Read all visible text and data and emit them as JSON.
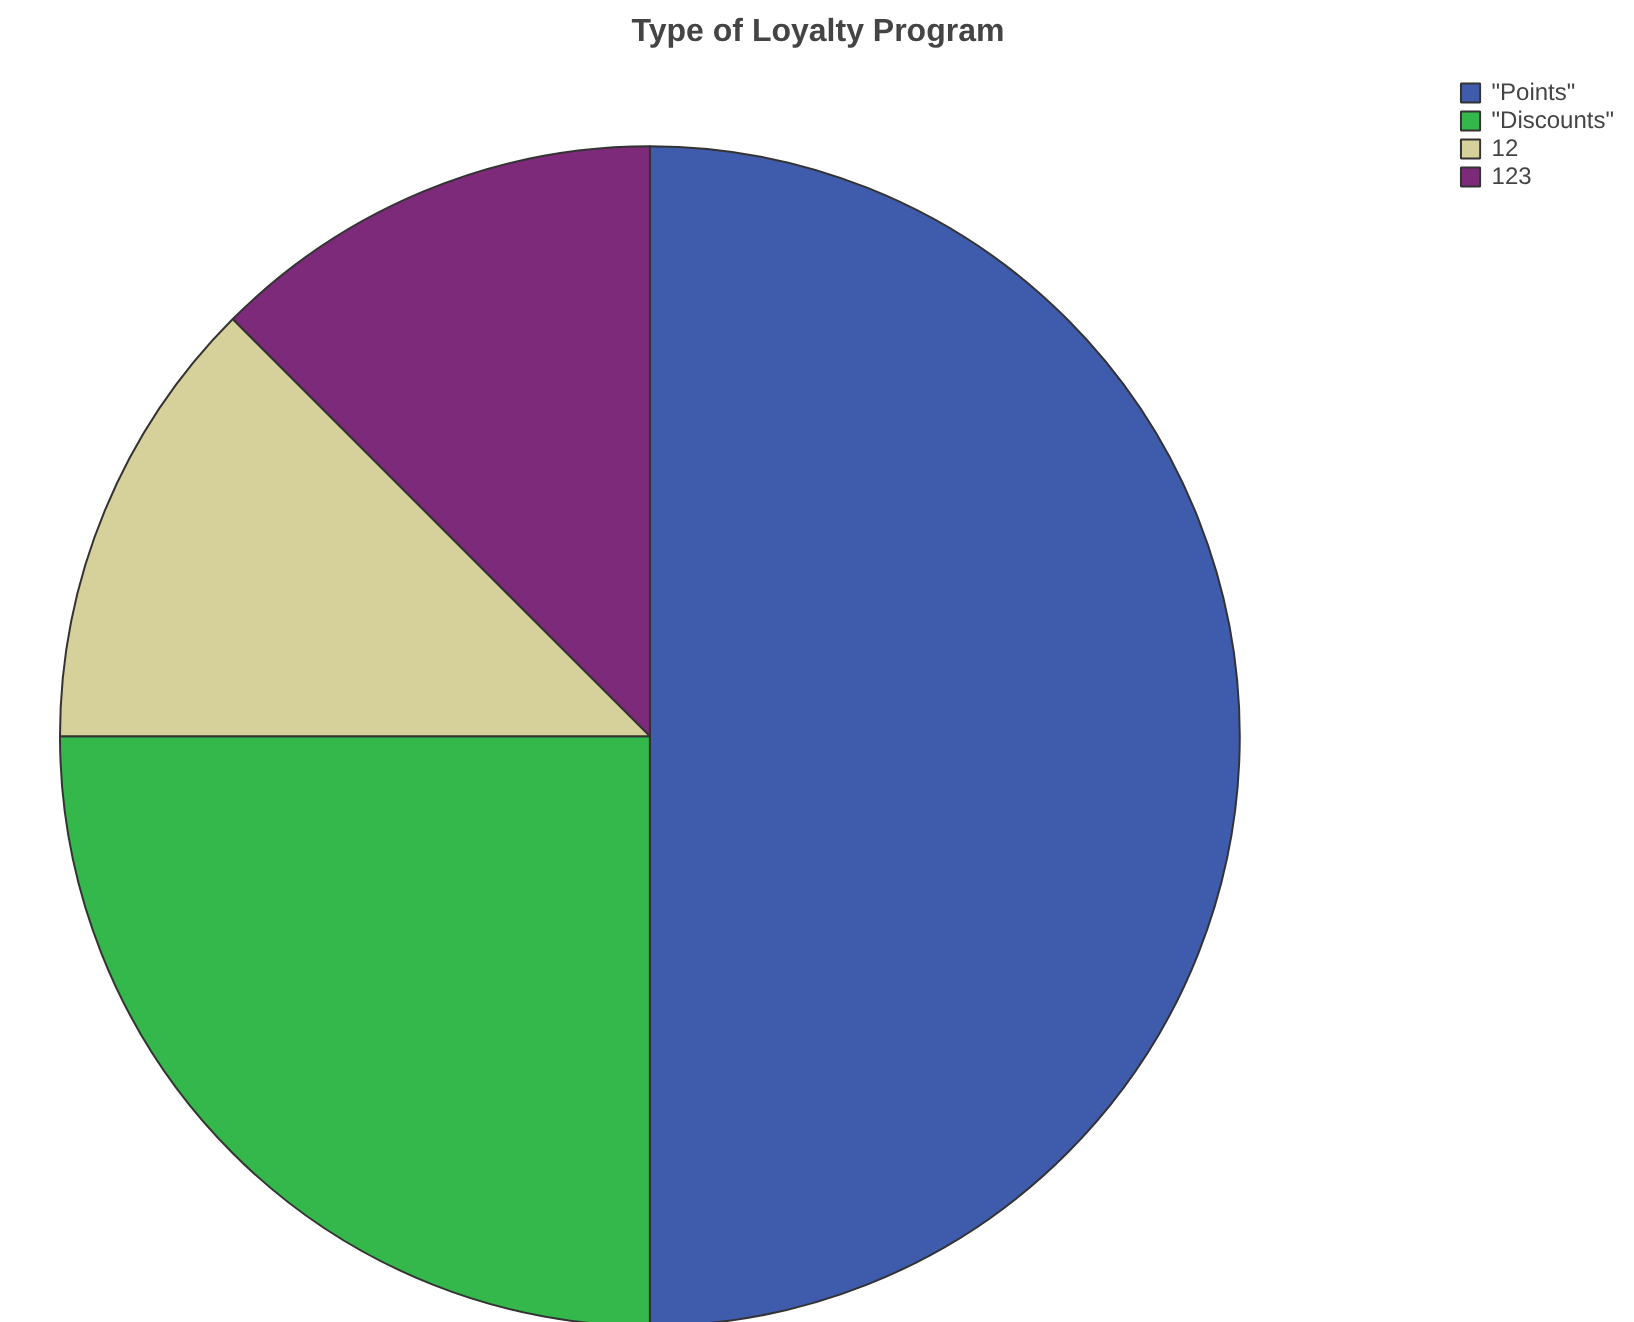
{
  "chart_data": {
    "type": "pie",
    "title": "Type of Loyalty Program",
    "categories": [
      "\"Points\"",
      "\"Discounts\"",
      "12",
      "123"
    ],
    "values": [
      50,
      25,
      12.5,
      12.5
    ],
    "colors": [
      "#3f5cac",
      "#34b84c",
      "#d6d09a",
      "#7d2a7b"
    ],
    "legend": "top right"
  }
}
